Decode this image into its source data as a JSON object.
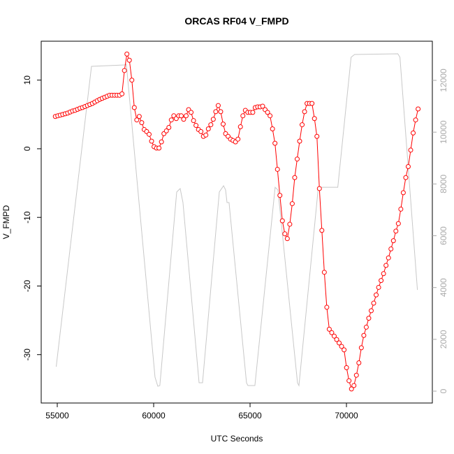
{
  "chart_data": {
    "type": "line",
    "title": "ORCAS RF04 V_FMPD",
    "xlabel": "UTC Seconds",
    "ylabel": "V_FMPD",
    "xlim": [
      54167,
      74455
    ],
    "xticks": [
      55000,
      60000,
      65000,
      70000
    ],
    "ylim": [
      -37.05,
      15.67
    ],
    "yticks": [
      -30,
      -20,
      -10,
      0,
      10
    ],
    "y2lim": [
      -458,
      13511
    ],
    "y2ticks": [
      0,
      2000,
      4000,
      6000,
      8000,
      10000,
      12000
    ],
    "series": [
      {
        "name": "V_FMPD",
        "color": "#ff0000",
        "marker": "circle",
        "x": [
          54900,
          55028,
          55156,
          55284,
          55412,
          55540,
          55668,
          55796,
          55924,
          56052,
          56180,
          56308,
          56436,
          56564,
          56692,
          56820,
          56948,
          57076,
          57204,
          57332,
          57460,
          57588,
          57716,
          57844,
          57972,
          58100,
          58228,
          58356,
          58484,
          58612,
          58740,
          58868,
          58996,
          59124,
          59252,
          59380,
          59508,
          59636,
          59764,
          59892,
          60020,
          60148,
          60276,
          60404,
          60532,
          60660,
          60788,
          60916,
          61044,
          61172,
          61300,
          61428,
          61556,
          61684,
          61812,
          61940,
          62068,
          62196,
          62324,
          62452,
          62580,
          62708,
          62836,
          62964,
          63092,
          63220,
          63348,
          63476,
          63604,
          63732,
          63860,
          63988,
          64116,
          64244,
          64372,
          64500,
          64628,
          64756,
          64884,
          65012,
          65140,
          65268,
          65396,
          65524,
          65652,
          65780,
          65908,
          66036,
          66164,
          66292,
          66420,
          66548,
          66676,
          66804,
          66932,
          67060,
          67188,
          67316,
          67444,
          67572,
          67700,
          67828,
          67956,
          68084,
          68212,
          68340,
          68468,
          68596,
          68724,
          68852,
          68980,
          69108,
          69236,
          69364,
          69492,
          69620,
          69748,
          69876,
          70004,
          70132,
          70260,
          70388,
          70516,
          70644,
          70772,
          70900,
          71028,
          71156,
          71284,
          71412,
          71540,
          71668,
          71796,
          71924,
          72052,
          72180,
          72308,
          72436,
          72564,
          72692,
          72820,
          72948,
          73076,
          73204,
          73332,
          73460,
          73588,
          73716
        ],
        "values": [
          4.7,
          4.8,
          4.9,
          5.0,
          5.1,
          5.2,
          5.35,
          5.5,
          5.6,
          5.75,
          5.9,
          6.0,
          6.15,
          6.3,
          6.45,
          6.6,
          6.8,
          7.0,
          7.2,
          7.35,
          7.5,
          7.65,
          7.8,
          7.8,
          7.8,
          7.8,
          7.8,
          8.0,
          11.4,
          13.8,
          12.9,
          10.0,
          6.0,
          4.2,
          4.7,
          3.8,
          2.8,
          2.5,
          2.1,
          1.1,
          0.3,
          0.1,
          0.1,
          1.0,
          2.2,
          2.6,
          3.1,
          4.2,
          4.8,
          4.4,
          4.8,
          4.8,
          4.3,
          4.8,
          5.7,
          5.3,
          4.1,
          3.4,
          2.8,
          2.5,
          1.8,
          2.0,
          2.9,
          3.5,
          4.3,
          5.4,
          6.3,
          5.4,
          3.6,
          2.2,
          1.8,
          1.4,
          1.2,
          1.0,
          1.4,
          3.2,
          4.8,
          5.6,
          5.3,
          5.3,
          5.3,
          6.0,
          6.1,
          6.1,
          6.2,
          5.7,
          5.3,
          4.8,
          2.9,
          0.8,
          -3.0,
          -6.8,
          -10.5,
          -12.4,
          -13.1,
          -11.0,
          -8.0,
          -4.2,
          -1.5,
          1.1,
          3.5,
          5.4,
          6.6,
          6.6,
          6.6,
          4.4,
          1.8,
          -5.8,
          -11.9,
          -18.0,
          -23.1,
          -26.3,
          -26.8,
          -27.3,
          -27.8,
          -28.3,
          -28.8,
          -29.3,
          -31.9,
          -33.8,
          -35.0,
          -34.5,
          -33.0,
          -31.2,
          -29.0,
          -27.2,
          -26.0,
          -24.7,
          -23.6,
          -22.5,
          -21.3,
          -20.2,
          -19.2,
          -18.2,
          -17.0,
          -15.9,
          -14.6,
          -13.4,
          -12.0,
          -10.9,
          -8.8,
          -6.4,
          -4.2,
          -2.6,
          -0.2,
          2.3,
          4.2,
          5.8
        ]
      },
      {
        "color": "#c8c8c8",
        "axis": "y2",
        "x": [
          54945,
          56775,
          58475,
          58585,
          60070,
          60215,
          60320,
          61195,
          61375,
          61520,
          62355,
          62535,
          63405,
          63625,
          63730,
          63805,
          63910,
          64815,
          64890,
          65250,
          66300,
          66445,
          67460,
          67535,
          68540,
          68610,
          69550,
          70240,
          70420,
          72665,
          72775,
          73680
        ],
        "values": [
          944,
          12540,
          12595,
          12620,
          540,
          190,
          215,
          7690,
          7820,
          7280,
          325,
          325,
          7690,
          7930,
          7770,
          7280,
          7280,
          325,
          215,
          215,
          7870,
          7770,
          325,
          215,
          7870,
          7870,
          7870,
          12890,
          13000,
          13025,
          12890,
          3910
        ]
      }
    ]
  }
}
